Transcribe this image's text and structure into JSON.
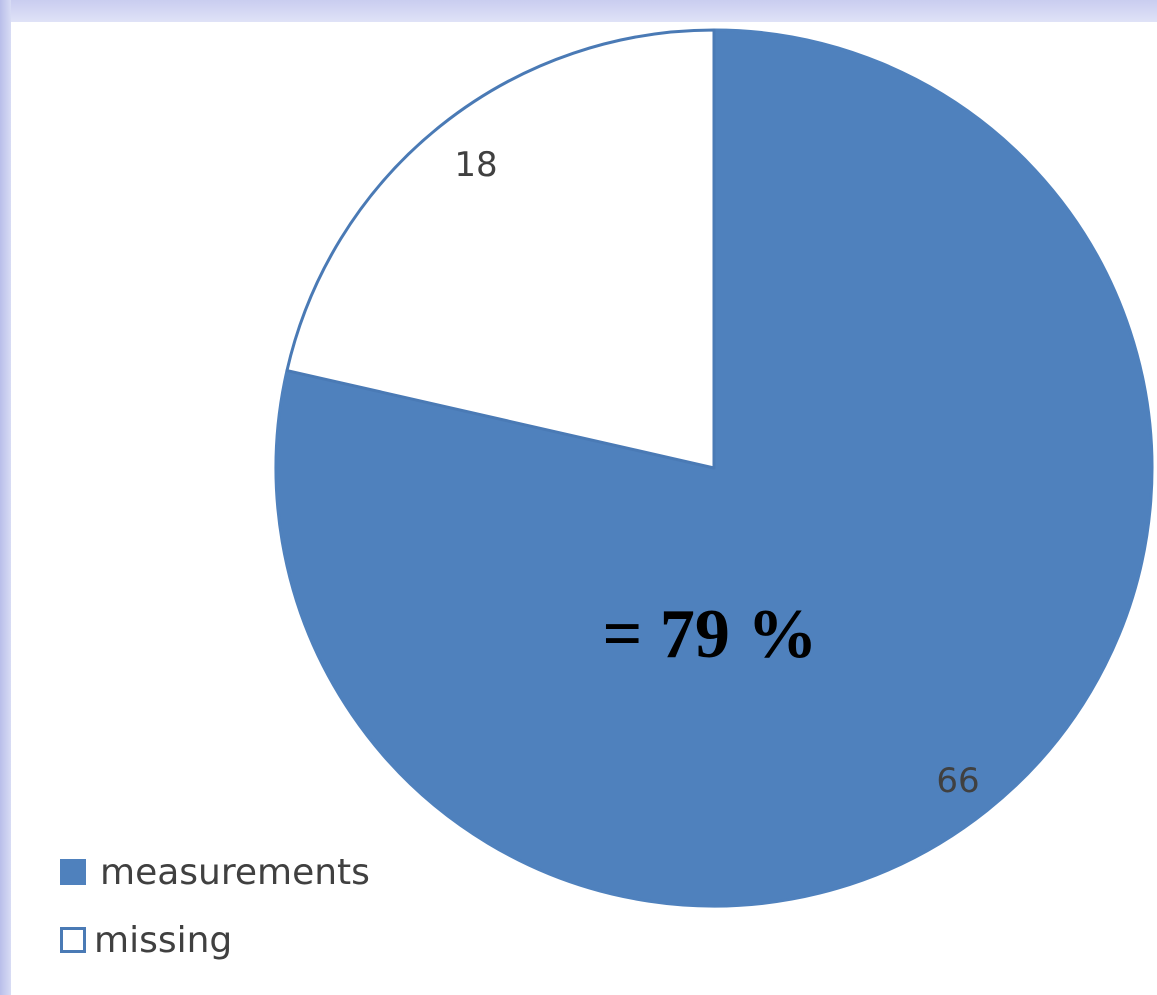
{
  "chart_data": {
    "type": "pie",
    "title": "",
    "slices": [
      {
        "label": "measurements",
        "value": 66,
        "color": "#4f81bd",
        "border": "#4f81bd"
      },
      {
        "label": "missing",
        "value": 18,
        "color": "#ffffff",
        "border": "#4a7ab5"
      }
    ],
    "annotation": "= 79 %",
    "legend": {
      "position": "bottom-left",
      "items": [
        "measurements",
        "missing"
      ]
    }
  },
  "colors": {
    "accent": "#4f81bd",
    "frame": "#c9cdf0"
  }
}
